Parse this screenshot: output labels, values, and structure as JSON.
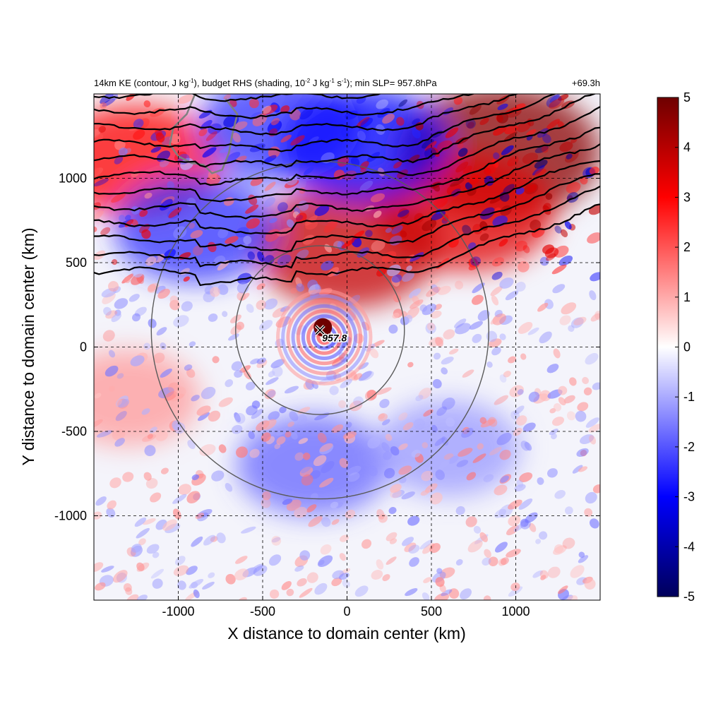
{
  "chart_data": {
    "type": "heatmap",
    "title_parts": {
      "t1": "14km KE (contour, J kg",
      "t2": "-1",
      "t3": "), budget RHS (shading, 10",
      "t4": "-2",
      "t5": " J kg",
      "t6": "-1",
      "t7": " s",
      "t8": "-1",
      "t9": "); min SLP= 957.8hPa"
    },
    "time_label": "+69.3h",
    "xlabel": "X distance to domain center (km)",
    "ylabel": "Y distance to domain center (km)",
    "xlim": [
      -1500,
      1500
    ],
    "ylim": [
      -1500,
      1500
    ],
    "x_ticks": [
      -1000,
      -500,
      0,
      500,
      1000
    ],
    "y_ticks": [
      -1000,
      -500,
      0,
      500,
      1000
    ],
    "x_tick_labels": [
      "-1000",
      "-500",
      "0",
      "500",
      "1000"
    ],
    "y_tick_labels": [
      "-1000",
      "-500",
      "0",
      "500",
      "1000"
    ],
    "grid": "dashed",
    "colorbar": {
      "min": -5,
      "max": 5,
      "ticks": [
        5,
        4,
        3,
        2,
        1,
        0,
        -1,
        -2,
        -3,
        -4,
        -5
      ],
      "tick_labels": [
        "5",
        "4",
        "3",
        "2",
        "1",
        "0",
        "-1",
        "-2",
        "-3",
        "-4",
        "-5"
      ],
      "colors": [
        "#00005a",
        "#0000ff",
        "#ffffff",
        "#ff0000",
        "#6e0000"
      ]
    },
    "storm_center": {
      "x": -160,
      "y": 100,
      "slp_label": "957.8"
    },
    "range_rings_km": [
      500,
      1000
    ],
    "contour_count": 12,
    "shading_regions": [
      {
        "kind": "positive",
        "x": -1250,
        "y": 1100,
        "strength": 2.5
      },
      {
        "kind": "positive",
        "x": 900,
        "y": 1150,
        "strength": 4.5
      },
      {
        "kind": "positive",
        "x": 700,
        "y": 800,
        "strength": 3.0
      },
      {
        "kind": "positive",
        "x": 0,
        "y": 600,
        "strength": 3.5
      },
      {
        "kind": "negative",
        "x": -400,
        "y": 1300,
        "strength": 2.0
      },
      {
        "kind": "negative",
        "x": 100,
        "y": 1200,
        "strength": 2.5
      },
      {
        "kind": "negative",
        "x": -900,
        "y": 700,
        "strength": 2.0
      },
      {
        "kind": "negative",
        "x": -200,
        "y": -700,
        "strength": 1.5
      },
      {
        "kind": "positive",
        "x": -1300,
        "y": -300,
        "strength": 1.0
      },
      {
        "kind": "negative",
        "x": 600,
        "y": -600,
        "strength": 1.0
      }
    ]
  }
}
